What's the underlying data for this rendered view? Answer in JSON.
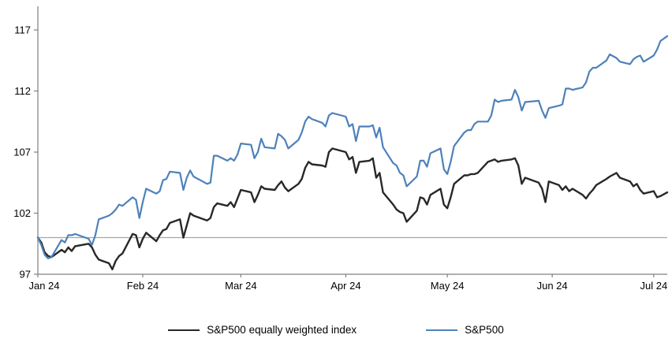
{
  "chart_data": {
    "type": "line",
    "title": "",
    "xlabel": "",
    "ylabel": "",
    "ylim": [
      97,
      117
    ],
    "y_ticks": [
      97,
      102,
      107,
      112,
      117
    ],
    "x_tick_labels": [
      "Jan 24",
      "Feb 24",
      "Mar 24",
      "Apr 24",
      "May 24",
      "Jun 24",
      "Jul 24"
    ],
    "month_tick_days": [
      0,
      31,
      60,
      91,
      121,
      152,
      182
    ],
    "x_domain_days": [
      0,
      186
    ],
    "grid": "off",
    "baseline_value": 100,
    "baseline_color": "#a6a6a6",
    "axis_color": "#808080",
    "tick_label_color": "#000000",
    "legend_position": "bottom-center",
    "dates": [
      "01-01",
      "01-02",
      "01-03",
      "01-04",
      "01-05",
      "01-08",
      "01-09",
      "01-10",
      "01-11",
      "01-12",
      "01-16",
      "01-17",
      "01-18",
      "01-19",
      "01-22",
      "01-23",
      "01-24",
      "01-25",
      "01-26",
      "01-29",
      "01-30",
      "01-31",
      "02-01",
      "02-02",
      "02-05",
      "02-06",
      "02-07",
      "02-08",
      "02-09",
      "02-12",
      "02-13",
      "02-14",
      "02-15",
      "02-16",
      "02-20",
      "02-21",
      "02-22",
      "02-23",
      "02-26",
      "02-27",
      "02-28",
      "02-29",
      "03-01",
      "03-04",
      "03-05",
      "03-06",
      "03-07",
      "03-08",
      "03-11",
      "03-12",
      "03-13",
      "03-14",
      "03-15",
      "03-18",
      "03-19",
      "03-20",
      "03-21",
      "03-22",
      "03-25",
      "03-26",
      "03-27",
      "03-28",
      "04-01",
      "04-02",
      "04-03",
      "04-04",
      "04-05",
      "04-08",
      "04-09",
      "04-10",
      "04-11",
      "04-12",
      "04-15",
      "04-16",
      "04-17",
      "04-18",
      "04-19",
      "04-22",
      "04-23",
      "04-24",
      "04-25",
      "04-26",
      "04-29",
      "04-30",
      "05-01",
      "05-02",
      "05-03",
      "05-06",
      "05-07",
      "05-08",
      "05-09",
      "05-10",
      "05-13",
      "05-14",
      "05-15",
      "05-16",
      "05-17",
      "05-20",
      "05-21",
      "05-22",
      "05-23",
      "05-24",
      "05-28",
      "05-29",
      "05-30",
      "05-31",
      "06-03",
      "06-04",
      "06-05",
      "06-06",
      "06-07",
      "06-10",
      "06-11",
      "06-12",
      "06-13",
      "06-14",
      "06-17",
      "06-18",
      "06-20",
      "06-21",
      "06-24",
      "06-25",
      "06-26",
      "06-27",
      "06-28",
      "07-01",
      "07-02",
      "07-03",
      "07-05"
    ],
    "series": [
      {
        "name": "S&P500 equally weighted index",
        "color": "#282828",
        "values": [
          100.0,
          99.6,
          98.8,
          98.5,
          98.4,
          99.0,
          98.8,
          99.2,
          98.9,
          99.3,
          99.5,
          99.2,
          98.6,
          98.2,
          97.9,
          97.4,
          98.1,
          98.5,
          98.7,
          100.3,
          100.2,
          99.2,
          99.9,
          100.4,
          99.7,
          100.2,
          100.6,
          100.7,
          101.2,
          101.5,
          100.0,
          101.0,
          102.0,
          101.8,
          101.4,
          101.6,
          102.5,
          102.8,
          102.6,
          102.9,
          102.5,
          103.2,
          103.9,
          103.7,
          102.9,
          103.5,
          104.2,
          104.0,
          103.9,
          104.3,
          104.6,
          104.1,
          103.8,
          104.4,
          104.8,
          105.7,
          106.2,
          106.0,
          105.9,
          105.8,
          107.0,
          107.3,
          107.0,
          106.4,
          106.6,
          105.3,
          106.2,
          106.3,
          106.5,
          104.9,
          105.3,
          103.7,
          102.7,
          102.3,
          102.1,
          102.0,
          101.3,
          102.2,
          103.3,
          103.2,
          102.7,
          103.5,
          104.0,
          102.7,
          102.4,
          103.3,
          104.4,
          105.1,
          105.1,
          105.2,
          105.2,
          105.3,
          106.2,
          106.3,
          106.4,
          106.2,
          106.3,
          106.4,
          106.5,
          105.9,
          104.4,
          104.9,
          104.5,
          104.0,
          102.9,
          104.6,
          104.3,
          103.9,
          104.2,
          103.8,
          104.0,
          103.5,
          103.2,
          103.6,
          103.9,
          104.3,
          104.8,
          105.0,
          105.3,
          104.9,
          104.6,
          104.2,
          104.4,
          103.9,
          103.6,
          103.8,
          103.3,
          103.4,
          103.7
        ]
      },
      {
        "name": "S&P500",
        "color": "#4e81bb",
        "values": [
          100.0,
          99.4,
          98.6,
          98.3,
          98.4,
          99.8,
          99.6,
          100.2,
          100.2,
          100.3,
          99.9,
          99.4,
          100.2,
          101.5,
          101.8,
          102.0,
          102.3,
          102.7,
          102.6,
          103.3,
          103.1,
          101.6,
          102.9,
          104.0,
          103.6,
          103.8,
          104.7,
          104.8,
          105.4,
          105.3,
          103.9,
          104.9,
          105.5,
          105.0,
          104.4,
          104.5,
          106.7,
          106.7,
          106.3,
          106.5,
          106.3,
          106.8,
          107.7,
          107.6,
          106.5,
          107.0,
          108.1,
          107.4,
          107.3,
          108.5,
          108.3,
          108.0,
          107.3,
          108.0,
          108.6,
          109.5,
          109.9,
          109.7,
          109.4,
          109.1,
          110.0,
          110.2,
          109.9,
          109.1,
          109.3,
          107.9,
          109.1,
          109.1,
          109.2,
          108.2,
          109.0,
          107.4,
          106.1,
          105.9,
          105.3,
          105.1,
          104.2,
          105.0,
          106.3,
          106.3,
          105.8,
          106.9,
          107.3,
          105.6,
          105.2,
          106.2,
          107.5,
          108.6,
          108.8,
          108.8,
          109.3,
          109.5,
          109.5,
          110.0,
          111.3,
          111.1,
          111.2,
          111.3,
          112.1,
          111.5,
          110.4,
          111.1,
          111.2,
          110.4,
          109.8,
          110.6,
          110.8,
          110.9,
          112.2,
          112.2,
          112.1,
          112.3,
          112.7,
          113.6,
          113.9,
          113.9,
          114.5,
          115.0,
          114.7,
          114.4,
          114.2,
          114.6,
          114.8,
          114.9,
          114.4,
          114.9,
          115.4,
          116.1,
          116.5
        ]
      }
    ]
  }
}
